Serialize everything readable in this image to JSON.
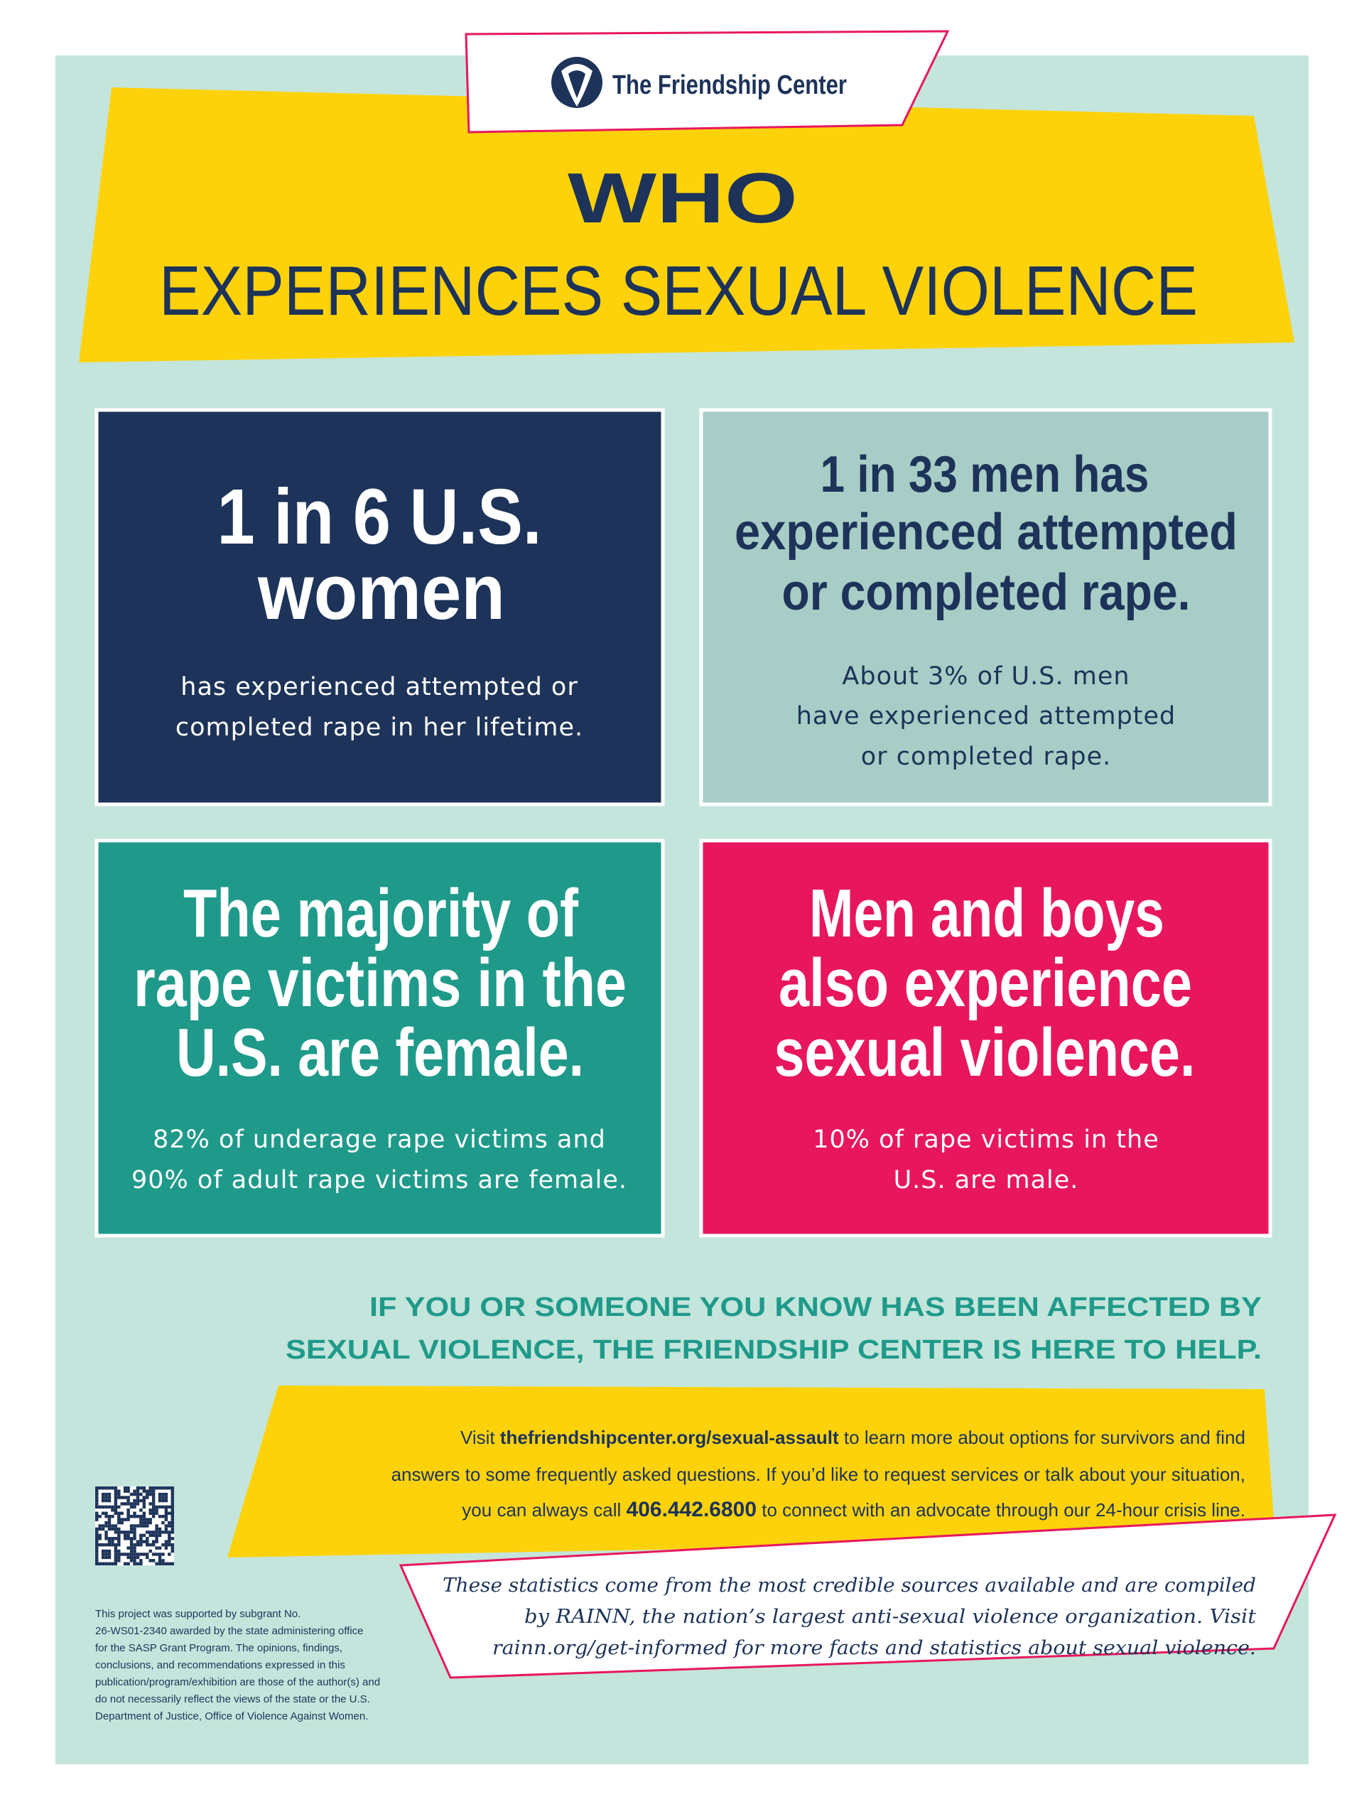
{
  "logo": {
    "name": "The Friendship Center"
  },
  "header": {
    "line1": "WHO",
    "line2": "EXPERIENCES SEXUAL VIOLENCE"
  },
  "cards": [
    {
      "headline": [
        "1 in 6 U.S.",
        "women"
      ],
      "body": [
        "has experienced attempted or",
        "completed rape in her lifetime."
      ]
    },
    {
      "headline": [
        "1 in 33 men has",
        "experienced attempted",
        "or completed rape."
      ],
      "body": [
        "About 3% of U.S. men",
        "have experienced attempted",
        "or completed rape."
      ]
    },
    {
      "headline": [
        "The majority of",
        "rape victims in the",
        "U.S. are female."
      ],
      "body": [
        "82% of underage rape victims and",
        "90% of adult rape victims are female."
      ]
    },
    {
      "headline": [
        "Men and boys",
        "also experience",
        "sexual violence."
      ],
      "body": [
        "10% of rape victims in the",
        "U.S. are male."
      ]
    }
  ],
  "help": {
    "lines": [
      "IF YOU OR SOMEONE YOU KNOW HAS BEEN AFFECTED BY",
      "SEXUAL VIOLENCE, THE FRIENDSHIP CENTER IS HERE TO HELP."
    ]
  },
  "info": {
    "lines": [
      [
        "Visit ",
        "thefriendshipcenter.org/sexual-assault",
        " to learn more about options for survivors and find"
      ],
      [
        "answers to some frequently asked questions. If you’d like to request services or talk about your situation,"
      ],
      [
        "you can always call ",
        "406.442.6800",
        " to connect with an advocate through our 24-hour crisis line."
      ]
    ]
  },
  "sources": {
    "lines": [
      "These statistics come from the most credible sources available and are compiled",
      "by RAINN, the nation’s largest anti-sexual violence organization. Visit",
      "rainn.org/get-informed for more facts and statistics about sexual violence."
    ]
  },
  "disclaimer": {
    "lines": [
      "This project was supported by subgrant No.",
      "26-WS01-2340 awarded by the state administering office",
      "for the SASP Grant Program. The opinions, findings,",
      "conclusions, and recommendations expressed in this",
      "publication/program/exhibition are those of the author(s) and",
      "do not necessarily reflect the views of the state or the U.S.",
      "Department of Justice, Office of Violence Against Women."
    ]
  }
}
